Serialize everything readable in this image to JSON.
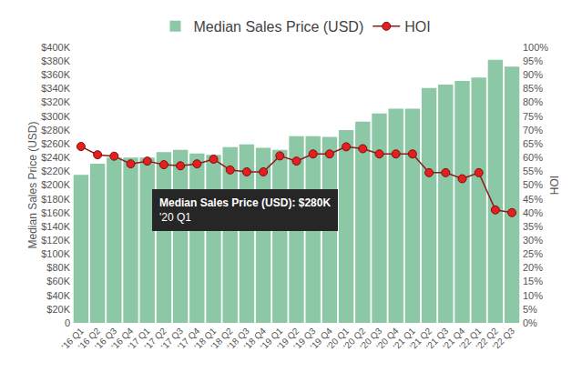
{
  "chart_data": {
    "type": "bar",
    "categories": [
      "'16 Q1",
      "'16 Q2",
      "'16 Q3",
      "'16 Q4",
      "'17 Q1",
      "'17 Q2",
      "'17 Q3",
      "'17 Q4",
      "'18 Q1",
      "'18 Q2",
      "'18 Q3",
      "'18 Q4",
      "'19 Q1",
      "'19 Q2",
      "'19 Q3",
      "'19 Q4",
      "'20 Q1",
      "'20 Q2",
      "'20 Q3",
      "'20 Q4",
      "'21 Q1",
      "'21 Q2",
      "'21 Q3",
      "'21 Q4",
      "'22 Q1",
      "'22 Q2",
      "'22 Q3"
    ],
    "series": [
      {
        "name": "Median Sales Price (USD)",
        "type": "bar",
        "color": "#8cc8a5",
        "values": [
          215000,
          231000,
          240000,
          240000,
          240000,
          248000,
          251000,
          246000,
          244000,
          255000,
          259000,
          254000,
          251000,
          271000,
          271000,
          270000,
          280000,
          292000,
          304000,
          311000,
          311000,
          341000,
          346000,
          351000,
          356000,
          382000,
          372000
        ]
      },
      {
        "name": "HOI",
        "type": "line",
        "axis": "y2",
        "color": "#e3201f",
        "marker": "circle",
        "values": [
          64,
          61,
          60.5,
          57.7,
          58.7,
          57.4,
          57,
          57.7,
          59.4,
          55.5,
          54.8,
          54.8,
          60.6,
          58.7,
          61.3,
          61.3,
          63.9,
          63.2,
          61.3,
          61.3,
          61.3,
          54.5,
          54.5,
          52.3,
          54.5,
          41,
          40
        ]
      }
    ],
    "y_label": "Median Sales Price (USD)",
    "y2_label": "HOI",
    "ylim": [
      0,
      400000
    ],
    "yticks": [
      0,
      {
        "value": 20000,
        "label": "$20K"
      },
      {
        "value": 40000,
        "label": "$40K"
      },
      {
        "value": 60000,
        "label": "$60K"
      },
      {
        "value": 80000,
        "label": "$80K"
      },
      {
        "value": 100000,
        "label": "$100K"
      },
      {
        "value": 120000,
        "label": "$120K"
      },
      {
        "value": 140000,
        "label": "$140K"
      },
      {
        "value": 160000,
        "label": "$160K"
      },
      {
        "value": 180000,
        "label": "$180K"
      },
      {
        "value": 200000,
        "label": "$200K"
      },
      {
        "value": 220000,
        "label": "$220K"
      },
      {
        "value": 240000,
        "label": "$240K"
      },
      {
        "value": 260000,
        "label": "$260K"
      },
      {
        "value": 280000,
        "label": "$280K"
      },
      {
        "value": 300000,
        "label": "$300K"
      },
      {
        "value": 320000,
        "label": "$320K"
      },
      {
        "value": 340000,
        "label": "$340K"
      },
      {
        "value": 360000,
        "label": "$360K"
      },
      {
        "value": 380000,
        "label": "$380K"
      },
      {
        "value": 400000,
        "label": "$400K"
      }
    ],
    "y2lim": [
      0,
      100
    ],
    "y2ticks": [
      {
        "value": 0,
        "label": "0%"
      },
      {
        "value": 5,
        "label": "5%"
      },
      {
        "value": 10,
        "label": "10%"
      },
      {
        "value": 15,
        "label": "15%"
      },
      {
        "value": 20,
        "label": "20%"
      },
      {
        "value": 25,
        "label": "25%"
      },
      {
        "value": 30,
        "label": "30%"
      },
      {
        "value": 35,
        "label": "35%"
      },
      {
        "value": 40,
        "label": "40%"
      },
      {
        "value": 45,
        "label": "45%"
      },
      {
        "value": 50,
        "label": "50%"
      },
      {
        "value": 55,
        "label": "55%"
      },
      {
        "value": 60,
        "label": "60%"
      },
      {
        "value": 65,
        "label": "65%"
      },
      {
        "value": 70,
        "label": "70%"
      },
      {
        "value": 75,
        "label": "75%"
      },
      {
        "value": 80,
        "label": "80%"
      },
      {
        "value": 85,
        "label": "85%"
      },
      {
        "value": 90,
        "label": "90%"
      },
      {
        "value": 95,
        "label": "95%"
      },
      {
        "value": 100,
        "label": "100%"
      }
    ],
    "annotations": [
      {
        "lines": [
          "Median Sales Price (USD): $280K",
          "'20 Q1"
        ]
      }
    ],
    "grid": false,
    "legend": "top"
  }
}
